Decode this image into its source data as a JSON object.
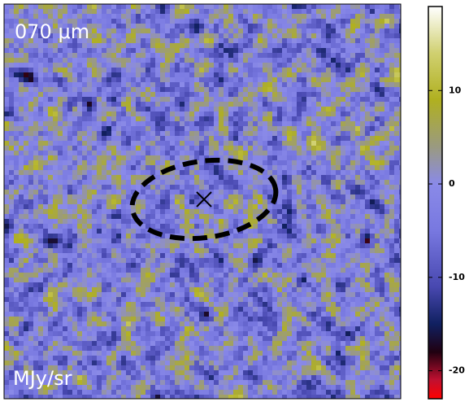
{
  "chart_data": {
    "type": "heatmap",
    "title": "070 μm",
    "colorbar_label": "MJy/sr",
    "clim": [
      -23,
      19
    ],
    "cticks": [
      -20,
      -10,
      0,
      10
    ],
    "colormap": [
      {
        "value": -23,
        "color": "#ff0000"
      },
      {
        "value": -21,
        "color": "#c01030"
      },
      {
        "value": -18,
        "color": "#200010"
      },
      {
        "value": -15,
        "color": "#102060"
      },
      {
        "value": -11,
        "color": "#4848b0"
      },
      {
        "value": -5,
        "color": "#7878e0"
      },
      {
        "value": 0,
        "color": "#8a8ae8"
      },
      {
        "value": 4,
        "color": "#9a9a80"
      },
      {
        "value": 9,
        "color": "#b0b020"
      },
      {
        "value": 14,
        "color": "#d0d070"
      },
      {
        "value": 19,
        "color": "#ffffff"
      }
    ]
  }
}
